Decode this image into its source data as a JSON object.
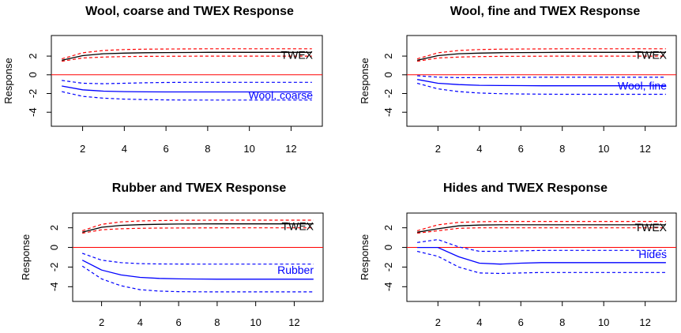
{
  "chart_data": [
    {
      "type": "line",
      "title": "Wool, coarse and TWEX Response",
      "ylabel": "Response",
      "xlabel": "",
      "x": [
        1,
        2,
        3,
        4,
        5,
        6,
        7,
        8,
        9,
        10,
        11,
        12,
        13
      ],
      "xlim": [
        0.5,
        13.5
      ],
      "ylim": [
        -5.5,
        4.2
      ],
      "xticks": [
        2,
        4,
        6,
        8,
        10,
        12
      ],
      "yticks": [
        -4,
        -2,
        0,
        2
      ],
      "zero_line": {
        "y": 0,
        "color": "#ff0000"
      },
      "series": [
        {
          "name": "TWEX",
          "color": "#000000",
          "label_color": "#000000",
          "values": [
            1.55,
            2.05,
            2.25,
            2.32,
            2.36,
            2.38,
            2.39,
            2.4,
            2.4,
            2.4,
            2.4,
            2.4,
            2.4
          ],
          "lower": [
            1.45,
            1.8,
            1.9,
            1.95,
            1.97,
            1.98,
            1.99,
            2.0,
            2.0,
            2.0,
            2.0,
            2.0,
            2.0
          ],
          "upper": [
            1.7,
            2.35,
            2.6,
            2.7,
            2.74,
            2.76,
            2.77,
            2.78,
            2.78,
            2.78,
            2.78,
            2.78,
            2.78
          ],
          "band_color": "#ff0000"
        },
        {
          "name": "Wool, coarse",
          "color": "#0000ff",
          "label_color": "#0000ff",
          "values": [
            -1.2,
            -1.6,
            -1.75,
            -1.8,
            -1.82,
            -1.83,
            -1.83,
            -1.83,
            -1.83,
            -1.83,
            -1.83,
            -1.83,
            -1.83
          ],
          "lower": [
            -1.8,
            -2.3,
            -2.5,
            -2.6,
            -2.65,
            -2.68,
            -2.7,
            -2.7,
            -2.7,
            -2.7,
            -2.7,
            -2.7,
            -2.7
          ],
          "upper": [
            -0.6,
            -0.9,
            -0.95,
            -0.9,
            -0.85,
            -0.82,
            -0.8,
            -0.8,
            -0.8,
            -0.8,
            -0.8,
            -0.8,
            -0.8
          ],
          "band_color": "#0000ff"
        }
      ]
    },
    {
      "type": "line",
      "title": "Wool, fine and TWEX Response",
      "ylabel": "Response",
      "xlabel": "",
      "x": [
        1,
        2,
        3,
        4,
        5,
        6,
        7,
        8,
        9,
        10,
        11,
        12,
        13
      ],
      "xlim": [
        0.5,
        13.5
      ],
      "ylim": [
        -5.5,
        4.2
      ],
      "xticks": [
        2,
        4,
        6,
        8,
        10,
        12
      ],
      "yticks": [
        -4,
        -2,
        0,
        2
      ],
      "zero_line": {
        "y": 0,
        "color": "#ff0000"
      },
      "series": [
        {
          "name": "TWEX",
          "color": "#000000",
          "label_color": "#000000",
          "values": [
            1.55,
            2.05,
            2.25,
            2.32,
            2.36,
            2.38,
            2.39,
            2.4,
            2.4,
            2.4,
            2.4,
            2.4,
            2.4
          ],
          "lower": [
            1.45,
            1.8,
            1.9,
            1.95,
            1.97,
            1.98,
            1.99,
            2.0,
            2.0,
            2.0,
            2.0,
            2.0,
            2.0
          ],
          "upper": [
            1.7,
            2.35,
            2.6,
            2.7,
            2.74,
            2.76,
            2.77,
            2.78,
            2.78,
            2.78,
            2.78,
            2.78,
            2.78
          ],
          "band_color": "#ff0000"
        },
        {
          "name": "Wool, fine",
          "color": "#0000ff",
          "label_color": "#0000ff",
          "values": [
            -0.5,
            -0.9,
            -1.05,
            -1.12,
            -1.15,
            -1.16,
            -1.17,
            -1.17,
            -1.17,
            -1.17,
            -1.17,
            -1.17,
            -1.17
          ],
          "lower": [
            -0.9,
            -1.5,
            -1.8,
            -1.95,
            -2.02,
            -2.05,
            -2.07,
            -2.08,
            -2.08,
            -2.08,
            -2.08,
            -2.08,
            -2.08
          ],
          "upper": [
            -0.1,
            -0.25,
            -0.3,
            -0.3,
            -0.28,
            -0.27,
            -0.26,
            -0.26,
            -0.26,
            -0.26,
            -0.26,
            -0.26,
            -0.26
          ],
          "band_color": "#0000ff"
        }
      ]
    },
    {
      "type": "line",
      "title": "Rubber and TWEX Response",
      "ylabel": "Response",
      "xlabel": "",
      "x": [
        1,
        2,
        3,
        4,
        5,
        6,
        7,
        8,
        9,
        10,
        11,
        12,
        13
      ],
      "xlim": [
        0.5,
        13.5
      ],
      "ylim": [
        -5.5,
        3.5
      ],
      "xticks": [
        2,
        4,
        6,
        8,
        10,
        12
      ],
      "yticks": [
        -4,
        -2,
        0,
        2
      ],
      "zero_line": {
        "y": 0,
        "color": "#ff0000"
      },
      "series": [
        {
          "name": "TWEX",
          "color": "#000000",
          "label_color": "#000000",
          "values": [
            1.55,
            2.05,
            2.25,
            2.32,
            2.36,
            2.38,
            2.39,
            2.4,
            2.4,
            2.4,
            2.4,
            2.4,
            2.4
          ],
          "lower": [
            1.45,
            1.8,
            1.9,
            1.95,
            1.97,
            1.98,
            1.99,
            2.0,
            2.0,
            2.0,
            2.0,
            2.0,
            2.0
          ],
          "upper": [
            1.7,
            2.35,
            2.6,
            2.7,
            2.74,
            2.76,
            2.77,
            2.78,
            2.78,
            2.78,
            2.78,
            2.78,
            2.78
          ],
          "band_color": "#ff0000"
        },
        {
          "name": "Rubber",
          "color": "#0000ff",
          "label_color": "#0000ff",
          "values": [
            -1.3,
            -2.3,
            -2.8,
            -3.05,
            -3.15,
            -3.2,
            -3.22,
            -3.23,
            -3.23,
            -3.23,
            -3.23,
            -3.23,
            -3.23
          ],
          "lower": [
            -1.9,
            -3.2,
            -3.9,
            -4.3,
            -4.45,
            -4.5,
            -4.52,
            -4.53,
            -4.53,
            -4.53,
            -4.53,
            -4.53,
            -4.53
          ],
          "upper": [
            -0.6,
            -1.3,
            -1.55,
            -1.65,
            -1.68,
            -1.69,
            -1.7,
            -1.7,
            -1.7,
            -1.7,
            -1.7,
            -1.7,
            -1.7
          ],
          "band_color": "#0000ff"
        }
      ]
    },
    {
      "type": "line",
      "title": "Hides and TWEX Response",
      "ylabel": "Response",
      "xlabel": "",
      "x": [
        1,
        2,
        3,
        4,
        5,
        6,
        7,
        8,
        9,
        10,
        11,
        12,
        13
      ],
      "xlim": [
        0.5,
        13.5
      ],
      "ylim": [
        -5.5,
        3.5
      ],
      "xticks": [
        2,
        4,
        6,
        8,
        10,
        12
      ],
      "yticks": [
        -4,
        -2,
        0,
        2
      ],
      "zero_line": {
        "y": 0,
        "color": "#ff0000"
      },
      "series": [
        {
          "name": "TWEX",
          "color": "#000000",
          "label_color": "#000000",
          "values": [
            1.55,
            1.9,
            2.2,
            2.28,
            2.3,
            2.3,
            2.3,
            2.3,
            2.3,
            2.3,
            2.3,
            2.3,
            2.3
          ],
          "lower": [
            1.45,
            1.7,
            1.95,
            2.0,
            2.0,
            2.0,
            2.0,
            2.0,
            2.0,
            2.0,
            2.0,
            2.0,
            2.0
          ],
          "upper": [
            1.7,
            2.3,
            2.55,
            2.62,
            2.65,
            2.65,
            2.65,
            2.65,
            2.65,
            2.65,
            2.65,
            2.65,
            2.65
          ],
          "band_color": "#ff0000"
        },
        {
          "name": "Hides",
          "color": "#0000ff",
          "label_color": "#0000ff",
          "values": [
            0,
            0,
            -0.95,
            -1.6,
            -1.7,
            -1.6,
            -1.55,
            -1.55,
            -1.55,
            -1.55,
            -1.55,
            -1.55,
            -1.55
          ],
          "lower": [
            -0.4,
            -0.9,
            -2.0,
            -2.6,
            -2.65,
            -2.6,
            -2.55,
            -2.55,
            -2.55,
            -2.55,
            -2.55,
            -2.55,
            -2.55
          ],
          "upper": [
            0.5,
            0.8,
            0.05,
            -0.4,
            -0.4,
            -0.35,
            -0.3,
            -0.3,
            -0.3,
            -0.3,
            -0.3,
            -0.3,
            -0.3
          ],
          "band_color": "#0000ff"
        }
      ]
    }
  ]
}
